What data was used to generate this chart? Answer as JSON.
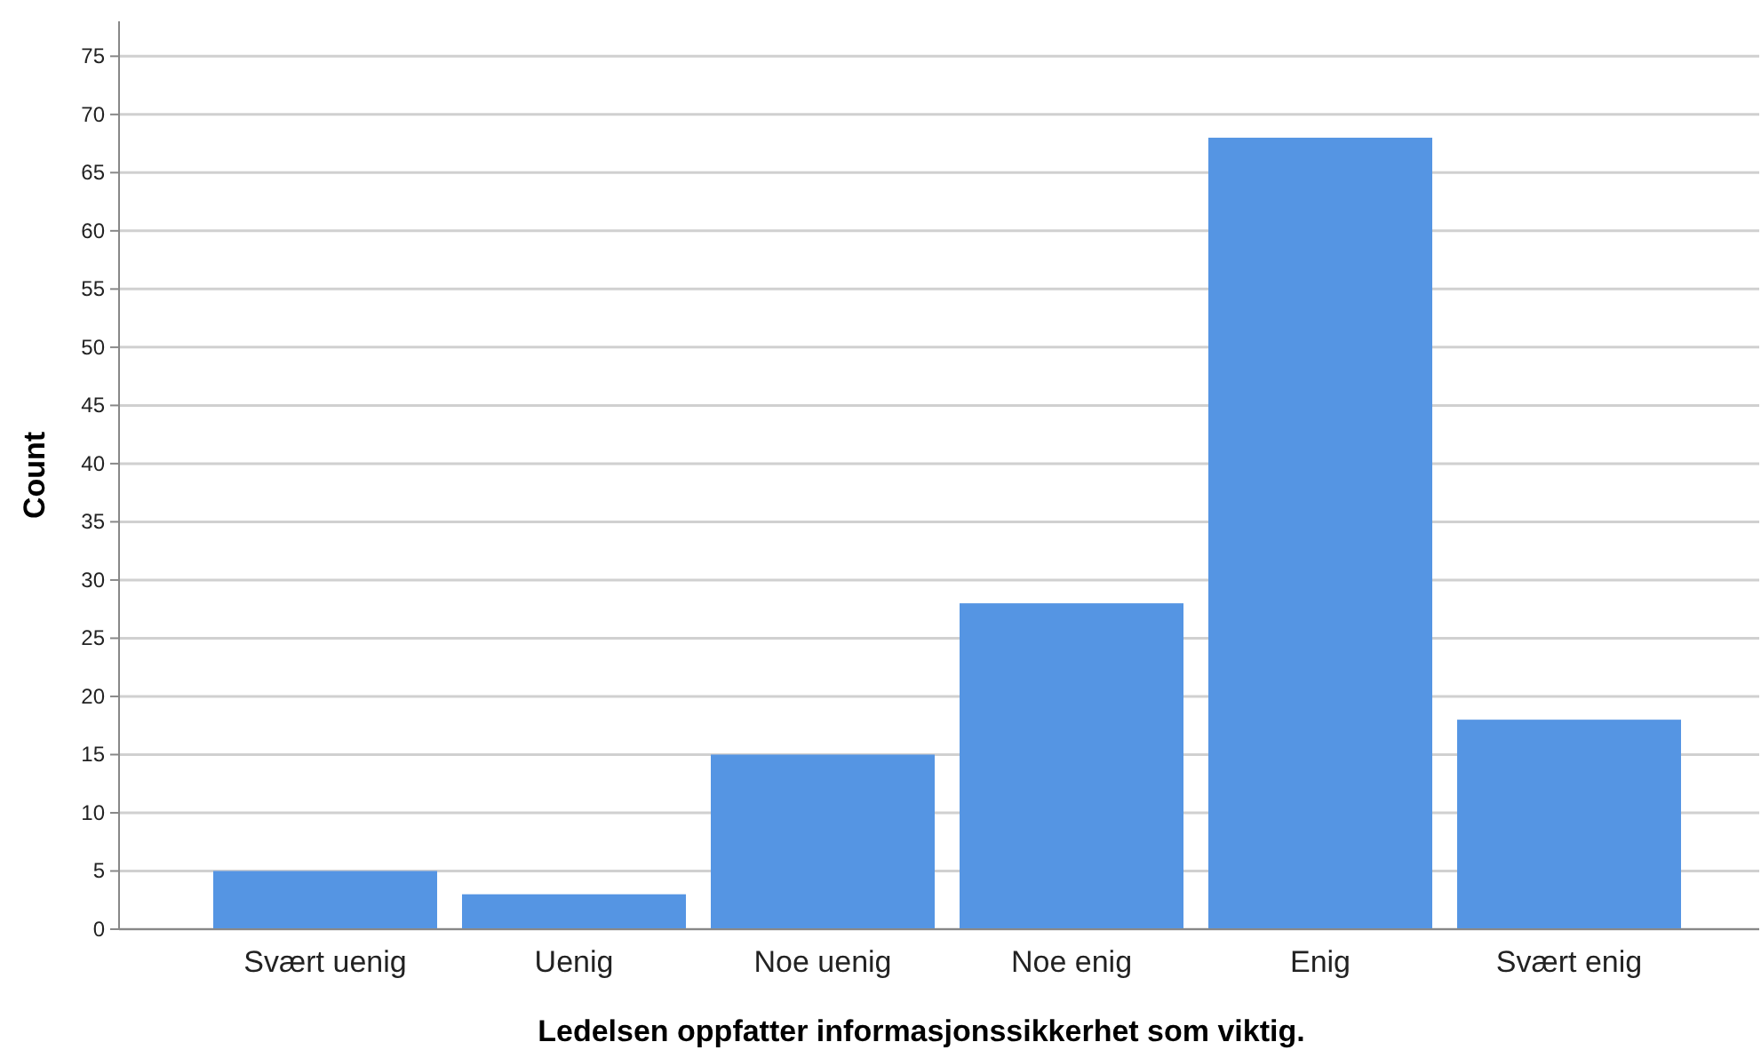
{
  "chart_data": {
    "type": "bar",
    "xlabel": "Ledelsen oppfatter informasjonssikkerhet som viktig.",
    "ylabel": "Count",
    "categories": [
      "Svært uenig",
      "Uenig",
      "Noe uenig",
      "Noe enig",
      "Enig",
      "Svært enig"
    ],
    "values": [
      5,
      3,
      15,
      28,
      68,
      18
    ],
    "color": "#5595e3",
    "ylim": [
      0,
      78
    ],
    "yticks": [
      0,
      5,
      10,
      15,
      20,
      25,
      30,
      35,
      40,
      45,
      50,
      55,
      60,
      65,
      70,
      75
    ],
    "grid": "y"
  }
}
